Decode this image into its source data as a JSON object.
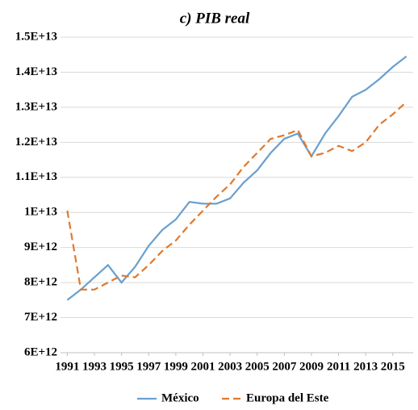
{
  "chart_data": {
    "type": "line",
    "title": "c) PIB real",
    "x": [
      1991,
      1992,
      1993,
      1994,
      1995,
      1996,
      1997,
      1998,
      1999,
      2000,
      2001,
      2002,
      2003,
      2004,
      2005,
      2006,
      2007,
      2008,
      2009,
      2010,
      2011,
      2012,
      2013,
      2014,
      2015,
      2016
    ],
    "series": [
      {
        "name": "México",
        "color": "#6a9fcf",
        "dash": false,
        "values": [
          7500000000000,
          7800000000000,
          8150000000000,
          8500000000000,
          8000000000000,
          8450000000000,
          9050000000000,
          9500000000000,
          9800000000000,
          10300000000000,
          10250000000000,
          10250000000000,
          10400000000000,
          10850000000000,
          11200000000000,
          11700000000000,
          12100000000000,
          12250000000000,
          11600000000000,
          12250000000000,
          12750000000000,
          13300000000000,
          13500000000000,
          13800000000000,
          14150000000000,
          14450000000000
        ]
      },
      {
        "name": "Europa del Este",
        "color": "#e0792e",
        "dash": true,
        "values": [
          10050000000000,
          7800000000000,
          7800000000000,
          8000000000000,
          8200000000000,
          8150000000000,
          8500000000000,
          8900000000000,
          9200000000000,
          9650000000000,
          10050000000000,
          10450000000000,
          10800000000000,
          11300000000000,
          11700000000000,
          12100000000000,
          12200000000000,
          12350000000000,
          11600000000000,
          11700000000000,
          11900000000000,
          11750000000000,
          12000000000000,
          12500000000000,
          12800000000000,
          13150000000000
        ]
      }
    ],
    "xlim": [
      1990.5,
      2016.5
    ],
    "xticks": [
      1991,
      1993,
      1995,
      1997,
      1999,
      2001,
      2003,
      2005,
      2007,
      2009,
      2011,
      2013,
      2015
    ],
    "ylim": [
      6000000000000,
      15000000000000
    ],
    "yticks": [
      {
        "value": 6000000000000,
        "label": "6E+12"
      },
      {
        "value": 7000000000000,
        "label": "7E+12"
      },
      {
        "value": 8000000000000,
        "label": "8E+12"
      },
      {
        "value": 9000000000000,
        "label": "9E+12"
      },
      {
        "value": 10000000000000,
        "label": "1E+13"
      },
      {
        "value": 11000000000000,
        "label": "1.1E+13"
      },
      {
        "value": 12000000000000,
        "label": "1.2E+13"
      },
      {
        "value": 13000000000000,
        "label": "1.3E+13"
      },
      {
        "value": 14000000000000,
        "label": "1.4E+13"
      },
      {
        "value": 15000000000000,
        "label": "1.5E+13"
      }
    ],
    "grid": true,
    "legend": "bottom"
  }
}
